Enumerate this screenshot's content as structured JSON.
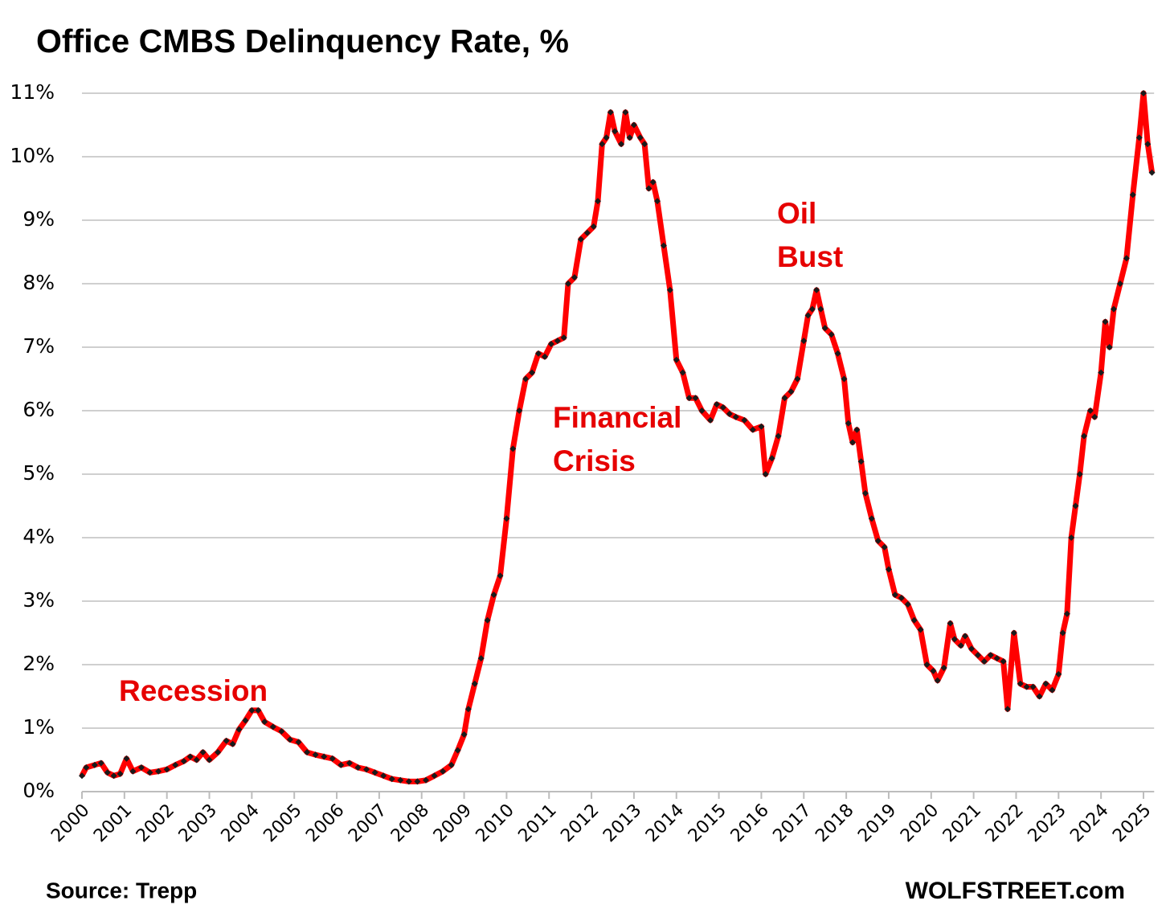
{
  "chart_data": {
    "type": "line",
    "title": "Office CMBS Delinquency Rate, %",
    "source": "Source: Trepp",
    "brand": "WOLFSTREET.com",
    "annotations": [
      [
        "Recession"
      ],
      [
        "Financial",
        "Crisis"
      ],
      [
        "Oil",
        "Bust"
      ]
    ],
    "xlim": [
      2000,
      2025.25
    ],
    "xticks": [
      2000,
      2001,
      2002,
      2003,
      2004,
      2005,
      2006,
      2007,
      2008,
      2009,
      2010,
      2011,
      2012,
      2013,
      2014,
      2015,
      2016,
      2017,
      2018,
      2019,
      2020,
      2021,
      2022,
      2023,
      2024,
      2025
    ],
    "ylim": [
      0,
      11
    ],
    "yticks": [
      {
        "value": 0,
        "label": "0%"
      },
      {
        "value": 1,
        "label": "1%"
      },
      {
        "value": 2,
        "label": "2%"
      },
      {
        "value": 3,
        "label": "3%"
      },
      {
        "value": 4,
        "label": "4%"
      },
      {
        "value": 5,
        "label": "5%"
      },
      {
        "value": 6,
        "label": "6%"
      },
      {
        "value": 7,
        "label": "7%"
      },
      {
        "value": 8,
        "label": "8%"
      },
      {
        "value": 9,
        "label": "9%"
      },
      {
        "value": 10,
        "label": "10%"
      },
      {
        "value": 11,
        "label": "11%"
      }
    ],
    "grid": true,
    "color": "#ff0000",
    "marker_color": "#1a1a1a",
    "x": [
      2000.0,
      2000.1,
      2000.3,
      2000.45,
      2000.6,
      2000.75,
      2000.9,
      2001.05,
      2001.2,
      2001.4,
      2001.6,
      2001.8,
      2002.0,
      2002.2,
      2002.4,
      2002.55,
      2002.7,
      2002.85,
      2003.0,
      2003.2,
      2003.4,
      2003.55,
      2003.7,
      2003.85,
      2004.0,
      2004.15,
      2004.3,
      2004.5,
      2004.7,
      2004.9,
      2005.1,
      2005.3,
      2005.5,
      2005.7,
      2005.9,
      2006.1,
      2006.3,
      2006.5,
      2006.7,
      2006.9,
      2007.1,
      2007.3,
      2007.5,
      2007.7,
      2007.9,
      2008.1,
      2008.3,
      2008.5,
      2008.7,
      2008.85,
      2009.0,
      2009.1,
      2009.25,
      2009.4,
      2009.55,
      2009.7,
      2009.85,
      2010.0,
      2010.15,
      2010.3,
      2010.45,
      2010.6,
      2010.75,
      2010.9,
      2011.05,
      2011.2,
      2011.35,
      2011.45,
      2011.6,
      2011.75,
      2011.9,
      2012.05,
      2012.15,
      2012.25,
      2012.35,
      2012.45,
      2012.55,
      2012.7,
      2012.8,
      2012.9,
      2013.0,
      2013.15,
      2013.25,
      2013.35,
      2013.45,
      2013.55,
      2013.7,
      2013.85,
      2014.0,
      2014.15,
      2014.3,
      2014.45,
      2014.6,
      2014.8,
      2014.95,
      2015.1,
      2015.25,
      2015.4,
      2015.6,
      2015.8,
      2016.0,
      2016.1,
      2016.25,
      2016.4,
      2016.55,
      2016.7,
      2016.85,
      2017.0,
      2017.1,
      2017.2,
      2017.3,
      2017.4,
      2017.5,
      2017.65,
      2017.8,
      2017.95,
      2018.05,
      2018.15,
      2018.25,
      2018.35,
      2018.45,
      2018.6,
      2018.75,
      2018.9,
      2019.0,
      2019.15,
      2019.3,
      2019.45,
      2019.6,
      2019.75,
      2019.9,
      2020.05,
      2020.15,
      2020.3,
      2020.45,
      2020.55,
      2020.7,
      2020.8,
      2020.95,
      2021.1,
      2021.25,
      2021.4,
      2021.55,
      2021.7,
      2021.8,
      2021.95,
      2022.1,
      2022.25,
      2022.4,
      2022.55,
      2022.7,
      2022.85,
      2023.0,
      2023.1,
      2023.2,
      2023.3,
      2023.4,
      2023.5,
      2023.6,
      2023.75,
      2023.85,
      2024.0,
      2024.1,
      2024.2,
      2024.3,
      2024.45,
      2024.6,
      2024.75,
      2024.9,
      2025.0,
      2025.1,
      2025.2
    ],
    "values": [
      0.25,
      0.38,
      0.42,
      0.45,
      0.3,
      0.25,
      0.28,
      0.52,
      0.32,
      0.38,
      0.3,
      0.32,
      0.35,
      0.42,
      0.48,
      0.55,
      0.5,
      0.62,
      0.5,
      0.62,
      0.8,
      0.75,
      0.98,
      1.12,
      1.28,
      1.28,
      1.1,
      1.02,
      0.95,
      0.82,
      0.78,
      0.62,
      0.58,
      0.55,
      0.52,
      0.42,
      0.45,
      0.38,
      0.35,
      0.3,
      0.25,
      0.2,
      0.18,
      0.16,
      0.16,
      0.18,
      0.25,
      0.32,
      0.42,
      0.65,
      0.9,
      1.3,
      1.7,
      2.1,
      2.7,
      3.1,
      3.4,
      4.3,
      5.4,
      6.0,
      6.5,
      6.6,
      6.9,
      6.85,
      7.05,
      7.1,
      7.15,
      8.0,
      8.1,
      8.7,
      8.8,
      8.9,
      9.3,
      10.2,
      10.3,
      10.7,
      10.4,
      10.2,
      10.7,
      10.3,
      10.5,
      10.3,
      10.2,
      9.5,
      9.6,
      9.3,
      8.6,
      7.9,
      6.8,
      6.6,
      6.2,
      6.2,
      6.0,
      5.85,
      6.1,
      6.05,
      5.95,
      5.9,
      5.85,
      5.7,
      5.75,
      5.0,
      5.25,
      5.6,
      6.2,
      6.3,
      6.5,
      7.1,
      7.5,
      7.6,
      7.9,
      7.6,
      7.3,
      7.2,
      6.9,
      6.5,
      5.8,
      5.5,
      5.7,
      5.2,
      4.7,
      4.3,
      3.95,
      3.85,
      3.5,
      3.1,
      3.05,
      2.95,
      2.7,
      2.55,
      2.0,
      1.9,
      1.75,
      1.95,
      2.65,
      2.4,
      2.3,
      2.45,
      2.25,
      2.15,
      2.05,
      2.15,
      2.1,
      2.05,
      1.3,
      2.5,
      1.7,
      1.65,
      1.65,
      1.5,
      1.7,
      1.6,
      1.85,
      2.5,
      2.8,
      4.0,
      4.5,
      5.0,
      5.6,
      6.0,
      5.9,
      6.6,
      7.4,
      7.0,
      7.6,
      8.0,
      8.4,
      9.4,
      10.3,
      11.0,
      10.2,
      9.75
    ]
  }
}
